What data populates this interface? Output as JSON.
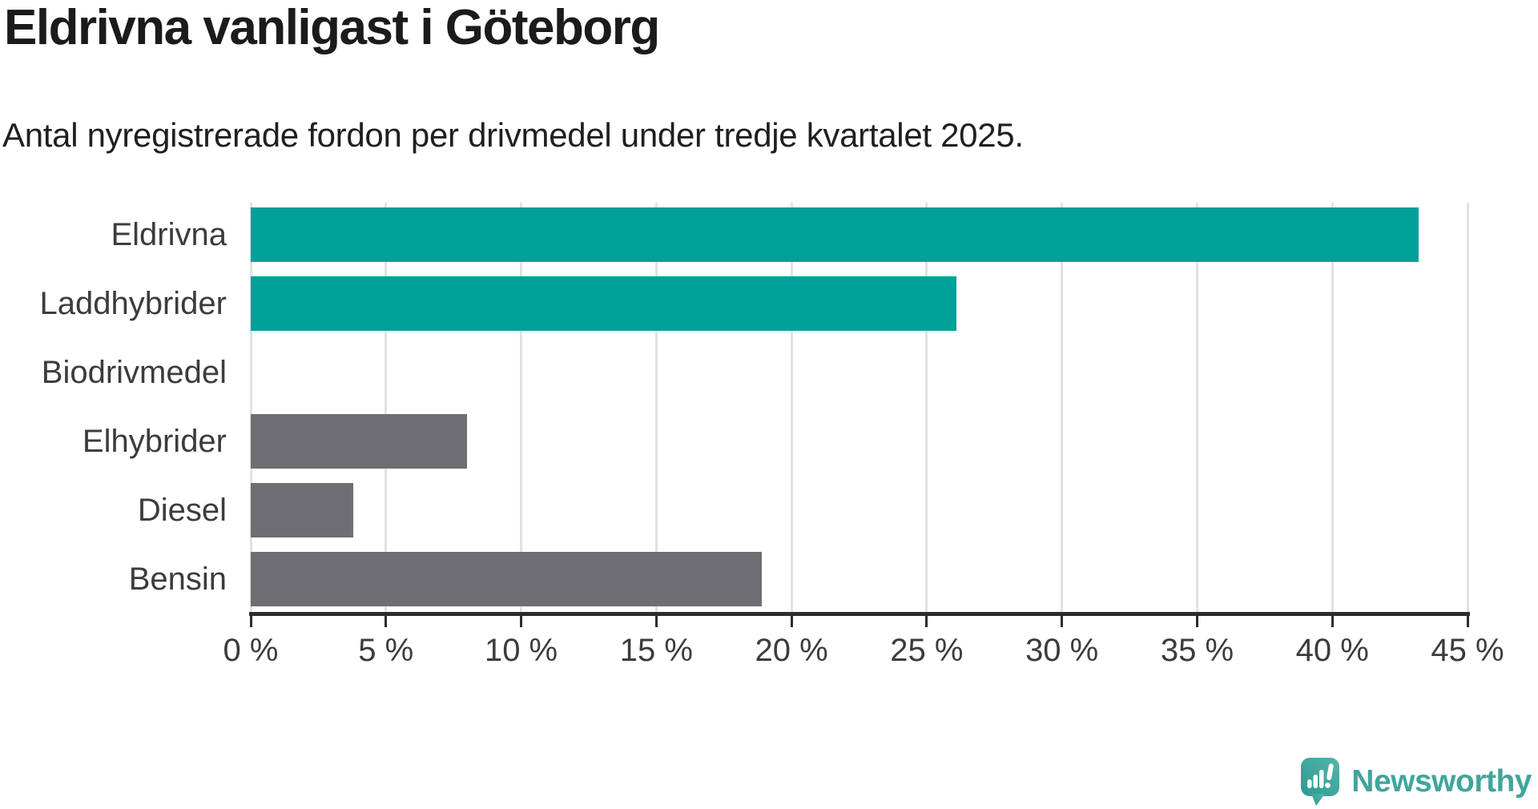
{
  "header": {
    "title": "Eldrivna vanligast i Göteborg",
    "subtitle": "Antal nyregistrerade fordon per drivmedel under tredje kvartalet 2025."
  },
  "chart_data": {
    "type": "bar",
    "orientation": "horizontal",
    "title": "Eldrivna vanligast i Göteborg",
    "subtitle": "Antal nyregistrerade fordon per drivmedel under tredje kvartalet 2025.",
    "categories": [
      "Eldrivna",
      "Laddhybrider",
      "Biodrivmedel",
      "Elhybrider",
      "Diesel",
      "Bensin"
    ],
    "values": [
      43.2,
      26.1,
      0,
      8.0,
      3.8,
      18.9
    ],
    "unit": "%",
    "bar_colors": [
      "#00a198",
      "#00a198",
      "#6e6e73",
      "#6e6e73",
      "#6e6e73",
      "#6e6e73"
    ],
    "xlabel": "",
    "ylabel": "",
    "xlim": [
      0,
      45
    ],
    "x_ticks": [
      0,
      5,
      10,
      15,
      20,
      25,
      30,
      35,
      40,
      45
    ],
    "x_tick_labels": [
      "0 %",
      "5 %",
      "10 %",
      "15 %",
      "20 %",
      "25 %",
      "30 %",
      "35 %",
      "40 %",
      "45 %"
    ],
    "grid": true,
    "legend": false
  },
  "colors": {
    "highlight_teal": "#00a198",
    "neutral_gray": "#6e6e73",
    "gridline": "#e2e2e2",
    "axis": "#2d2d2d",
    "text_dark": "#1b1b1b",
    "text_label": "#3c3c3c",
    "brand_teal": "#3fa69c"
  },
  "branding": {
    "logo_text": "Newsworthy",
    "logo_icon": "newsworthy-speech-bubble-bar-chart-icon"
  }
}
